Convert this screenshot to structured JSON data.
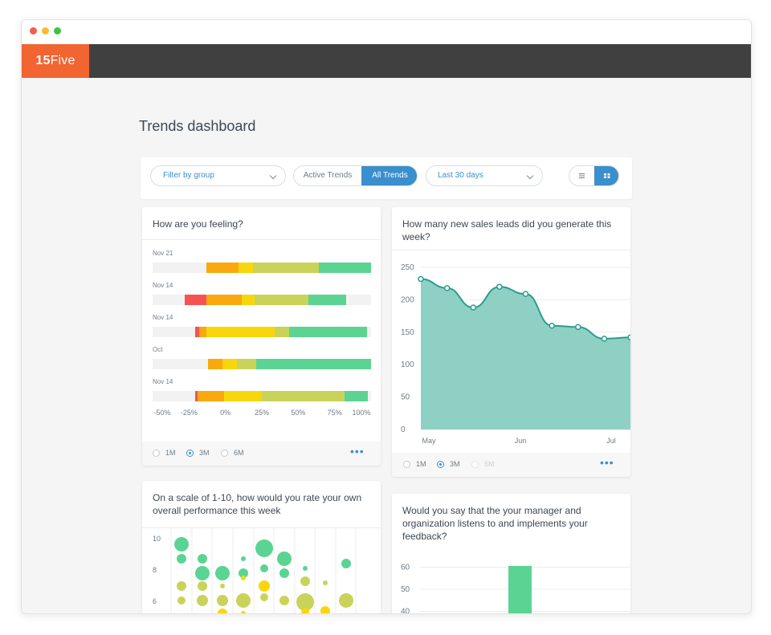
{
  "app": {
    "logo_bold": "15",
    "logo_light": "Five"
  },
  "page": {
    "title": "Trends dashboard"
  },
  "toolbar": {
    "filter_group": "Filter by group",
    "active_trends": "Active Trends",
    "all_trends": "All Trends",
    "range": "Last 30 days",
    "list_view_icon": "list-icon",
    "grid_view_icon": "grid-icon"
  },
  "colors": {
    "brand": "#f26432",
    "accent": "#3a8fcd",
    "area": "#8fd0c4",
    "area_line": "#2a9d8f",
    "green": "#5bd493",
    "olive": "#c9d35a",
    "yellow": "#f9d60c",
    "orange": "#f9a90b",
    "red": "#f75252"
  },
  "cards": {
    "feeling": {
      "question": "How are you feeling?",
      "ranges": [
        "1M",
        "3M",
        "6M"
      ],
      "selected": "3M",
      "more": "•••"
    },
    "sales": {
      "question": "How many new sales leads did you generate this week?",
      "ranges": [
        "1M",
        "3M",
        "6M"
      ],
      "selected": "3M",
      "more": "•••"
    },
    "performance": {
      "question": "On a scale of 1-10, how would you rate your own overall performance this week"
    },
    "manager": {
      "question": "Would you say that the your manager and organization listens to and implements your feedback?"
    }
  },
  "chart_data": [
    {
      "type": "bar",
      "title": "How are you feeling?",
      "orientation": "horizontal-stacked-diverging",
      "categories": [
        "Nov 21",
        "Nov 14",
        "Nov 14",
        "Oct",
        "Nov 14"
      ],
      "xlim": [
        -50,
        100
      ],
      "x_ticks": [
        "-50%",
        "-25%",
        "0%",
        "25%",
        "50%",
        "75%",
        "100%"
      ],
      "series": [
        {
          "color": "#f75252",
          "values": [
            0,
            15,
            3,
            0,
            2
          ]
        },
        {
          "color": "#f9a90b",
          "values": [
            22,
            24,
            5,
            10,
            18
          ]
        },
        {
          "color": "#f9d60c",
          "values": [
            10,
            9,
            47,
            10,
            26
          ]
        },
        {
          "color": "#c9d35a",
          "values": [
            45,
            37,
            10,
            13,
            57
          ]
        },
        {
          "color": "#5bd493",
          "values": [
            40,
            26,
            53,
            98,
            16
          ]
        }
      ],
      "starts": [
        -13,
        -28,
        -21,
        -12,
        -21
      ]
    },
    {
      "type": "area",
      "title": "How many new sales leads did you generate this week?",
      "x": [
        "May 1",
        "May 10",
        "May 20",
        "May 31",
        "Jun 10",
        "Jun 20",
        "Jun 30",
        "Jul 10",
        "Jul 20"
      ],
      "x_ticks": [
        "May",
        "Jun",
        "Jul"
      ],
      "values": [
        232,
        218,
        188,
        220,
        209,
        160,
        158,
        140,
        142
      ],
      "ylim": [
        0,
        250
      ],
      "y_ticks": [
        0,
        50,
        100,
        150,
        200,
        250
      ]
    },
    {
      "type": "scatter",
      "title": "On a scale of 1-10, how would you rate your own overall performance this week",
      "y_ticks": [
        6,
        8,
        10
      ]
    },
    {
      "type": "bar",
      "title": "Would you say that the your manager and organization listens to and implements your feedback?",
      "y_ticks": [
        40,
        50,
        60
      ]
    }
  ]
}
